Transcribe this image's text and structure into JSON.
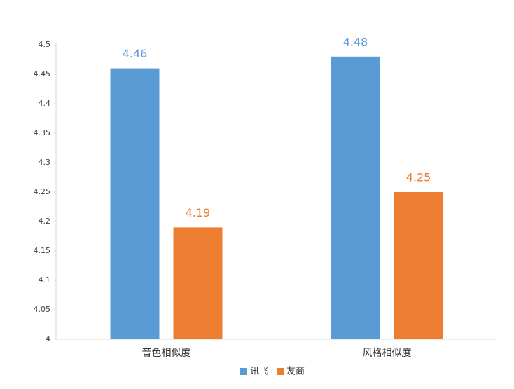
{
  "chart_data": {
    "type": "bar",
    "categories": [
      "音色相似度",
      "风格相似度"
    ],
    "series": [
      {
        "name": "讯飞",
        "color": "#5b9bd5",
        "values": [
          4.46,
          4.48
        ]
      },
      {
        "name": "友商",
        "color": "#ed7d31",
        "values": [
          4.19,
          4.25
        ]
      }
    ],
    "ylim": [
      4,
      4.5
    ],
    "yticks": [
      4,
      4.05,
      4.1,
      4.15,
      4.2,
      4.25,
      4.3,
      4.35,
      4.4,
      4.45,
      4.5
    ],
    "grid": false,
    "legend": "bottom"
  }
}
